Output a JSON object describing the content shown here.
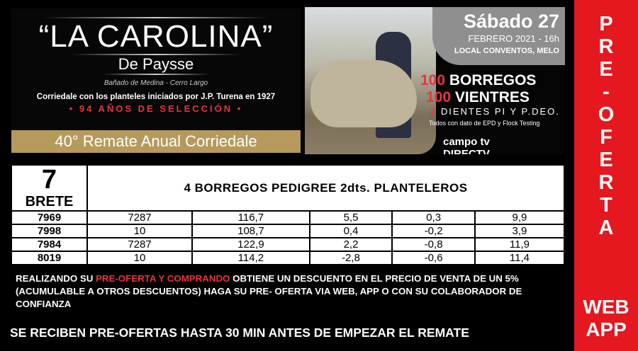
{
  "logo": {
    "title": "“LA CAROLINA”",
    "subtitle": "De Paysse",
    "place": "Bañado de Medina - Cerro Largo",
    "tagline": "Corriedale con los planteles iniciados por J.P. Turena en 1927",
    "years": "• 94 AÑOS DE SELECCIÓN •",
    "band": "40° Remate Anual Corriedale"
  },
  "promo": {
    "date_day": "Sábado 27",
    "date_month": "FEBRERO 2021 - 16h",
    "location": "LOCAL CONVENTOS, MELO",
    "lot1_num": "100",
    "lot1_label": "BORREGOS",
    "lot2_num": "100",
    "lot2_label": "VIENTRES",
    "teeth_num": "2",
    "teeth_label": "DIENTES PI Y P.DEO.",
    "epd": "Todos con dato de EPD y Flock Testing",
    "broadcaster1": "campo tv",
    "broadcaster2": "DIRECTV"
  },
  "table": {
    "brete_num": "7",
    "brete_label": "BRETE",
    "header": "4 BORREGOS PEDIGREE  2dts. PLANTELEROS",
    "rows": [
      [
        "7969",
        "7287",
        "116,7",
        "5,5",
        "0,3",
        "9,9"
      ],
      [
        "7998",
        "10",
        "108,7",
        "0,4",
        "-0,2",
        "3,9"
      ],
      [
        "7984",
        "7287",
        "122,9",
        "2,2",
        "-0,8",
        "11,9"
      ],
      [
        "8019",
        "10",
        "114,2",
        "-2,8",
        "-0,6",
        "11,4"
      ]
    ]
  },
  "note": {
    "part1": "REALIZANDO SU ",
    "highlight": "PRE-OFERTA Y COMPRANDO ",
    "part2": " OBTIENE UN DESCUENTO EN EL PRECIO DE VENTA DE UN 5%  (ACUMULABLE A OTROS DESCUENTOS) HAGA SU PRE- OFERTA VIA WEB, APP O CON SU COLABORADOR DE CONFIANZA"
  },
  "footer": "SE RECIBEN PRE-OFERTAS HASTA 30 MIN ANTES DE EMPEZAR EL REMATE",
  "side": {
    "vertical": [
      "P",
      "R",
      "E",
      "-",
      "O",
      "F",
      "E",
      "R",
      "T",
      "A"
    ],
    "web": "WEB",
    "app": "APP"
  },
  "colors": {
    "accent_red": "#e5171f",
    "gold": "#b59a5c"
  }
}
